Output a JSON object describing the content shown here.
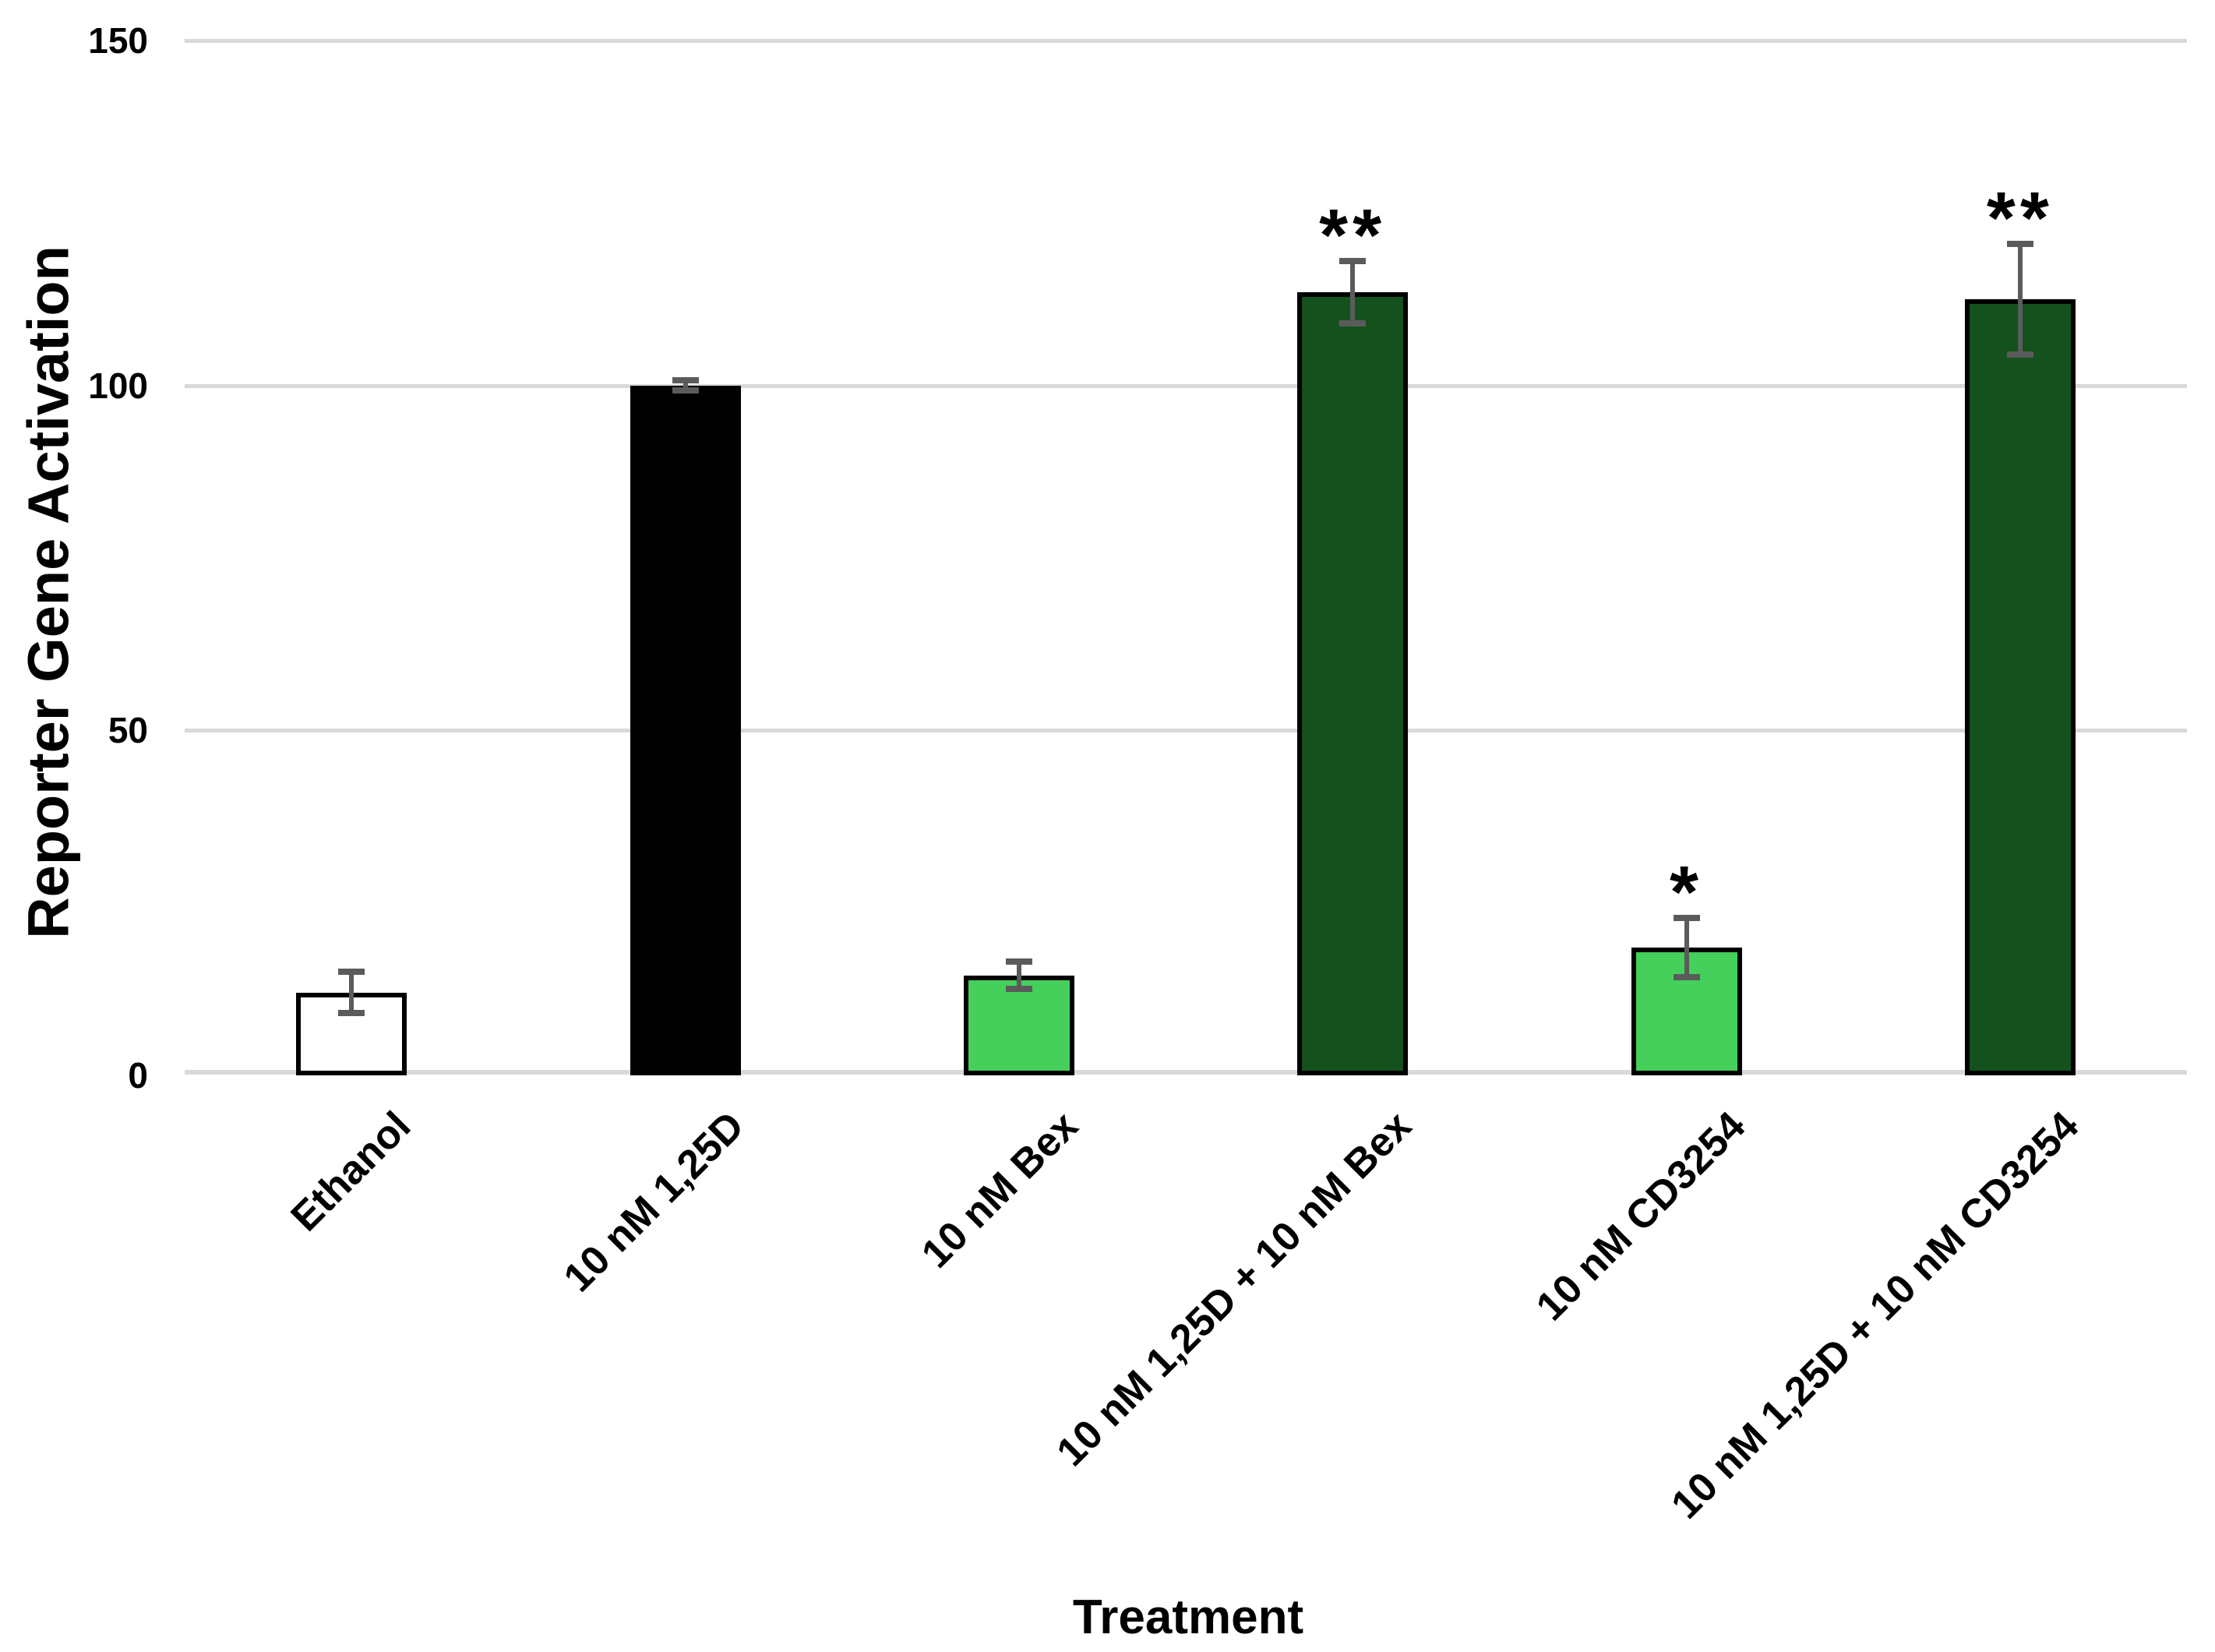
{
  "chart_data": {
    "type": "bar",
    "title": "",
    "xlabel": "Treatment",
    "ylabel": "Reporter Gene Activation",
    "ylim": [
      0,
      150
    ],
    "yticks": [
      0,
      50,
      100,
      150
    ],
    "ytick_labels": [
      "0",
      "50",
      "100",
      "150"
    ],
    "grid": true,
    "legend": null,
    "categories": [
      "Ethanol",
      "10 nM 1,25D",
      "10 nM Bex",
      "10 nM 1,25D + 10 nM Bex",
      "10 nM CD3254",
      "10 nM 1,25D + 10 nM CD3254"
    ],
    "values": [
      12,
      100,
      14.5,
      113.5,
      18.5,
      112.5
    ],
    "error_bars": [
      3,
      0.7,
      2,
      4.5,
      4.3,
      8
    ],
    "significance": [
      "",
      "",
      "",
      "**",
      "*",
      "**"
    ],
    "colors": {
      "bar_fills": [
        "#FFFFFF",
        "#000000",
        "#44D05A",
        "#15511D",
        "#44D05A",
        "#15511D"
      ],
      "bar_border": "#000000",
      "error_bar": "#5B5B5B",
      "gridline": "#D9D9D9",
      "text": "#000000",
      "background": "#FFFFFF"
    }
  }
}
